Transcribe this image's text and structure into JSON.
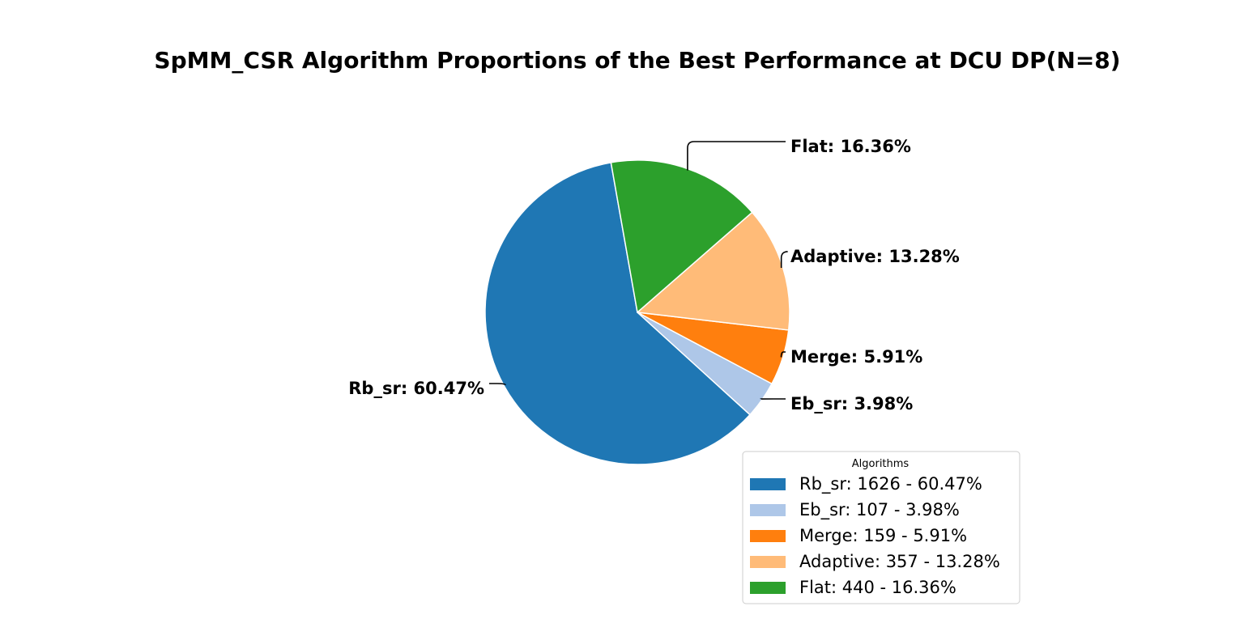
{
  "chart_data": {
    "type": "pie",
    "title": "SpMM_CSR Algorithm Proportions of the Best Performance at DCU DP(N=8)",
    "slices": [
      {
        "name": "Rb_sr",
        "count": 1626,
        "percent": 60.47,
        "label": "Rb_sr: 60.47%",
        "legend": "Rb_sr: 1626 - 60.47%",
        "color": "#1f77b4"
      },
      {
        "name": "Eb_sr",
        "count": 107,
        "percent": 3.98,
        "label": "Eb_sr: 3.98%",
        "legend": "Eb_sr: 107 - 3.98%",
        "color": "#aec7e8"
      },
      {
        "name": "Merge",
        "count": 159,
        "percent": 5.91,
        "label": "Merge: 5.91%",
        "legend": "Merge: 159 - 5.91%",
        "color": "#ff7f0e"
      },
      {
        "name": "Adaptive",
        "count": 357,
        "percent": 13.28,
        "label": "Adaptive: 13.28%",
        "legend": "Adaptive: 357 - 13.28%",
        "color": "#ffbb78"
      },
      {
        "name": "Flat",
        "count": 440,
        "percent": 16.36,
        "label": "Flat: 16.36%",
        "legend": "Flat: 440 - 16.36%",
        "color": "#2ca02c"
      }
    ],
    "start_angle_deg": 100,
    "direction": "counterclockwise",
    "legend": {
      "title": "Algorithms",
      "placement": "lower-right"
    }
  }
}
